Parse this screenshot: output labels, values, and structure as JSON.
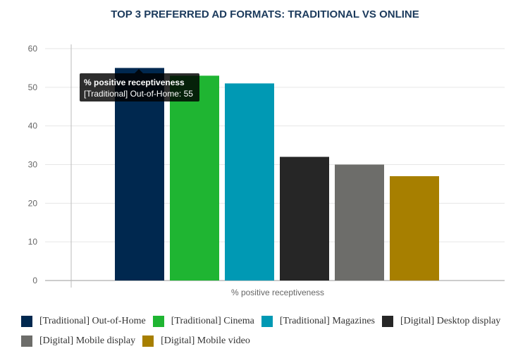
{
  "chart_data": {
    "type": "bar",
    "title": "TOP 3 PREFERRED AD FORMATS: TRADITIONAL VS ONLINE",
    "xlabel": "% positive receptiveness",
    "ylabel": "",
    "ylim": [
      0,
      60
    ],
    "yticks": [
      "0",
      "10",
      "20",
      "30",
      "40",
      "50",
      "60"
    ],
    "grid": true,
    "legend_position": "bottom",
    "categories": [
      "% positive receptiveness"
    ],
    "series": [
      {
        "name": "[Traditional] Out-of-Home",
        "values": [
          55
        ],
        "color": "#00284f"
      },
      {
        "name": "[Traditional] Cinema",
        "values": [
          53
        ],
        "color": "#1fb532"
      },
      {
        "name": "[Traditional] Magazines",
        "values": [
          51
        ],
        "color": "#0099b4"
      },
      {
        "name": "[Digital] Desktop display",
        "values": [
          32
        ],
        "color": "#262626"
      },
      {
        "name": "[Digital] Mobile display",
        "values": [
          30
        ],
        "color": "#6d6d6a"
      },
      {
        "name": "[Digital] Mobile video",
        "values": [
          27
        ],
        "color": "#a77f00"
      }
    ]
  },
  "tooltip": {
    "title": "% positive receptiveness",
    "body": "[Traditional] Out-of-Home: 55"
  }
}
